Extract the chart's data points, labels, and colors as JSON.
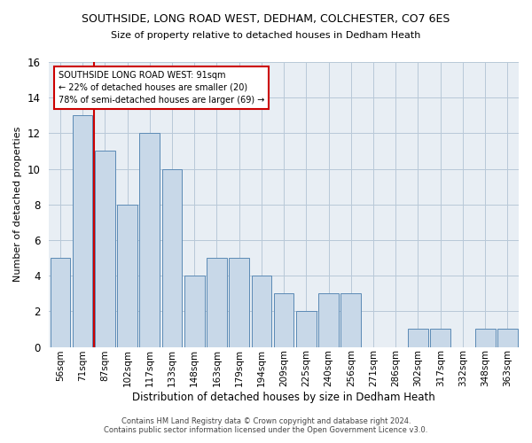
{
  "title": "SOUTHSIDE, LONG ROAD WEST, DEDHAM, COLCHESTER, CO7 6ES",
  "subtitle": "Size of property relative to detached houses in Dedham Heath",
  "xlabel": "Distribution of detached houses by size in Dedham Heath",
  "ylabel": "Number of detached properties",
  "categories": [
    "56sqm",
    "71sqm",
    "87sqm",
    "102sqm",
    "117sqm",
    "133sqm",
    "148sqm",
    "163sqm",
    "179sqm",
    "194sqm",
    "209sqm",
    "225sqm",
    "240sqm",
    "256sqm",
    "271sqm",
    "286sqm",
    "302sqm",
    "317sqm",
    "332sqm",
    "348sqm",
    "363sqm"
  ],
  "values": [
    5,
    13,
    11,
    8,
    12,
    10,
    4,
    5,
    5,
    4,
    3,
    2,
    3,
    3,
    0,
    0,
    1,
    1,
    0,
    1,
    1
  ],
  "bar_color": "#c8d8e8",
  "bar_edge_color": "#5b8ab5",
  "vline_x": 2,
  "vline_color": "#cc0000",
  "annotation_line1": "SOUTHSIDE LONG ROAD WEST: 91sqm",
  "annotation_line2": "← 22% of detached houses are smaller (20)",
  "annotation_line3": "78% of semi-detached houses are larger (69) →",
  "annotation_box_color": "white",
  "annotation_box_edge": "#cc0000",
  "ylim": [
    0,
    16
  ],
  "yticks": [
    0,
    2,
    4,
    6,
    8,
    10,
    12,
    14,
    16
  ],
  "footer1": "Contains HM Land Registry data © Crown copyright and database right 2024.",
  "footer2": "Contains public sector information licensed under the Open Government Licence v3.0.",
  "background_color": "#e8eef4",
  "plot_background_color": "#ffffff"
}
